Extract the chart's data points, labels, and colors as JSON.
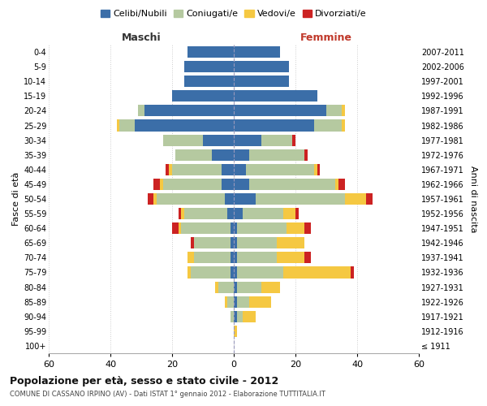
{
  "age_groups": [
    "100+",
    "95-99",
    "90-94",
    "85-89",
    "80-84",
    "75-79",
    "70-74",
    "65-69",
    "60-64",
    "55-59",
    "50-54",
    "45-49",
    "40-44",
    "35-39",
    "30-34",
    "25-29",
    "20-24",
    "15-19",
    "10-14",
    "5-9",
    "0-4"
  ],
  "birth_years": [
    "≤ 1911",
    "1912-1916",
    "1917-1921",
    "1922-1926",
    "1927-1931",
    "1932-1936",
    "1937-1941",
    "1942-1946",
    "1947-1951",
    "1952-1956",
    "1957-1961",
    "1962-1966",
    "1967-1971",
    "1972-1976",
    "1977-1981",
    "1982-1986",
    "1987-1991",
    "1992-1996",
    "1997-2001",
    "2002-2006",
    "2007-2011"
  ],
  "colors": {
    "celibi": "#3b6ea8",
    "coniugati": "#b5c9a0",
    "vedovi": "#f5c842",
    "divorziati": "#cc2222"
  },
  "maschi": {
    "celibi": [
      0,
      0,
      0,
      0,
      0,
      1,
      1,
      1,
      1,
      2,
      3,
      4,
      4,
      7,
      10,
      32,
      29,
      20,
      16,
      16,
      15
    ],
    "coniugati": [
      0,
      0,
      1,
      2,
      5,
      13,
      12,
      12,
      16,
      14,
      22,
      19,
      16,
      12,
      13,
      5,
      2,
      0,
      0,
      0,
      0
    ],
    "vedovi": [
      0,
      0,
      0,
      1,
      1,
      1,
      2,
      0,
      1,
      1,
      1,
      1,
      1,
      0,
      0,
      1,
      0,
      0,
      0,
      0,
      0
    ],
    "divorziati": [
      0,
      0,
      0,
      0,
      0,
      0,
      0,
      1,
      2,
      1,
      2,
      2,
      1,
      0,
      0,
      0,
      0,
      0,
      0,
      0,
      0
    ]
  },
  "femmine": {
    "celibi": [
      0,
      0,
      1,
      1,
      1,
      1,
      1,
      1,
      1,
      3,
      7,
      5,
      4,
      5,
      9,
      26,
      30,
      27,
      18,
      18,
      15
    ],
    "coniugati": [
      0,
      0,
      2,
      4,
      8,
      15,
      13,
      13,
      16,
      13,
      29,
      28,
      22,
      18,
      10,
      9,
      5,
      0,
      0,
      0,
      0
    ],
    "vedovi": [
      0,
      1,
      4,
      7,
      6,
      22,
      9,
      9,
      6,
      4,
      7,
      1,
      1,
      0,
      0,
      1,
      1,
      0,
      0,
      0,
      0
    ],
    "divorziati": [
      0,
      0,
      0,
      0,
      0,
      1,
      2,
      0,
      2,
      1,
      2,
      2,
      1,
      1,
      1,
      0,
      0,
      0,
      0,
      0,
      0
    ]
  },
  "xlim": 60,
  "title": "Popolazione per età, sesso e stato civile - 2012",
  "subtitle": "COMUNE DI CASSANO IRPINO (AV) - Dati ISTAT 1° gennaio 2012 - Elaborazione TUTTITALIA.IT",
  "ylabel_left": "Fasce di età",
  "ylabel_right": "Anni di nascita",
  "legend_labels": [
    "Celibi/Nubili",
    "Coniugati/e",
    "Vedovi/e",
    "Divorziati/e"
  ],
  "maschi_label": "Maschi",
  "femmine_label": "Femmine"
}
